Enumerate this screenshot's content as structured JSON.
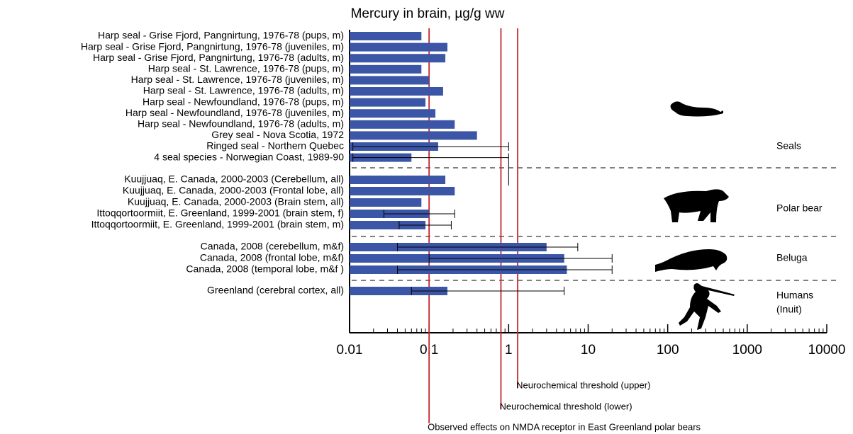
{
  "chart_data": {
    "type": "bar",
    "orientation": "horizontal",
    "title": "Mercury in brain, µg/g ww",
    "log_x": true,
    "color": "#3b56a6",
    "threshold_color": "#c4262e",
    "categories": [
      "Harp seal - Grise Fjord, Pangnirtung, 1976-78 (pups, m)",
      "Harp seal - Grise Fjord, Pangnirtung, 1976-78 (juveniles, m)",
      "Harp seal - Grise Fjord, Pangnirtung, 1976-78 (adults, m)",
      "Harp seal - St. Lawrence, 1976-78 (pups, m)",
      "Harp seal - St. Lawrence, 1976-78 (juveniles, m)",
      "Harp seal - St. Lawrence, 1976-78 (adults, m)",
      "Harp seal - Newfoundland, 1976-78 (pups, m)",
      "Harp seal - Newfoundland, 1976-78 (juveniles, m)",
      "Harp seal - Newfoundland, 1976-78 (adults, m)",
      "Grey seal - Nova Scotia, 1972",
      "Ringed seal - Northern Quebec",
      "4 seal species - Norwegian Coast, 1989-90",
      "Kuujjuaq, E. Canada, 2000-2003 (Cerebellum, all)",
      "Kuujjuaq, E. Canada, 2000-2003 (Frontal lobe, all)",
      "Kuujjuaq, E. Canada, 2000-2003 (Brain stem, all)",
      "Ittoqqortoormiit, E. Greenland, 1999-2001 (brain stem, f)",
      "Ittoqqortoormiit, E. Greenland, 1999-2001 (brain stem, m)",
      "Canada, 2008 (cerebellum, m&f)",
      "Canada, 2008 (frontal lobe, m&f)",
      "Canada, 2008 (temporal lobe, m&f )",
      "Greenland (cerebral cortex, all)"
    ],
    "values": [
      0.08,
      0.17,
      0.16,
      0.08,
      0.1,
      0.15,
      0.09,
      0.12,
      0.21,
      0.4,
      0.13,
      0.06,
      0.16,
      0.21,
      0.08,
      0.1,
      0.09,
      3,
      5,
      5.4,
      0.17
    ],
    "ranges": [
      null,
      null,
      null,
      null,
      null,
      null,
      null,
      null,
      null,
      null,
      [
        0.011,
        1.0
      ],
      [
        0.011,
        1.0
      ],
      null,
      null,
      null,
      [
        0.027,
        0.21
      ],
      [
        0.042,
        0.19
      ],
      [
        0.04,
        7.4
      ],
      [
        0.1,
        20
      ],
      [
        0.04,
        20
      ],
      [
        0.06,
        5
      ]
    ],
    "group_labels": [
      [
        "Seals"
      ],
      [
        "Polar bear"
      ],
      [
        "Beluga"
      ],
      [
        "Humans",
        "(Inuit)"
      ]
    ],
    "thresholds": [
      {
        "value": 1.3,
        "label": "Neurochemical threshold (upper)"
      },
      {
        "value": 0.8,
        "label": "Neurochemical threshold (lower)"
      },
      {
        "value": 0.1,
        "label": "Observed effects on NMDA receptor in East Greenland polar bears"
      }
    ],
    "xlim": [
      0.01,
      10000
    ],
    "xticks": [
      0.01,
      0.1,
      1,
      10,
      100,
      1000,
      10000
    ],
    "minor_xticks": [
      0.02,
      0.03,
      0.04,
      0.05,
      0.06,
      0.07,
      0.08,
      0.09,
      0.2,
      0.3,
      0.4,
      0.5,
      0.6,
      0.7,
      0.8,
      0.9,
      2,
      3,
      4,
      5,
      6,
      7,
      8,
      9,
      20,
      30,
      40,
      50,
      60,
      70,
      80,
      90,
      200,
      300,
      400,
      500,
      600,
      700,
      800,
      900,
      2000,
      3000,
      4000,
      5000,
      6000,
      7000,
      8000,
      9000
    ]
  }
}
